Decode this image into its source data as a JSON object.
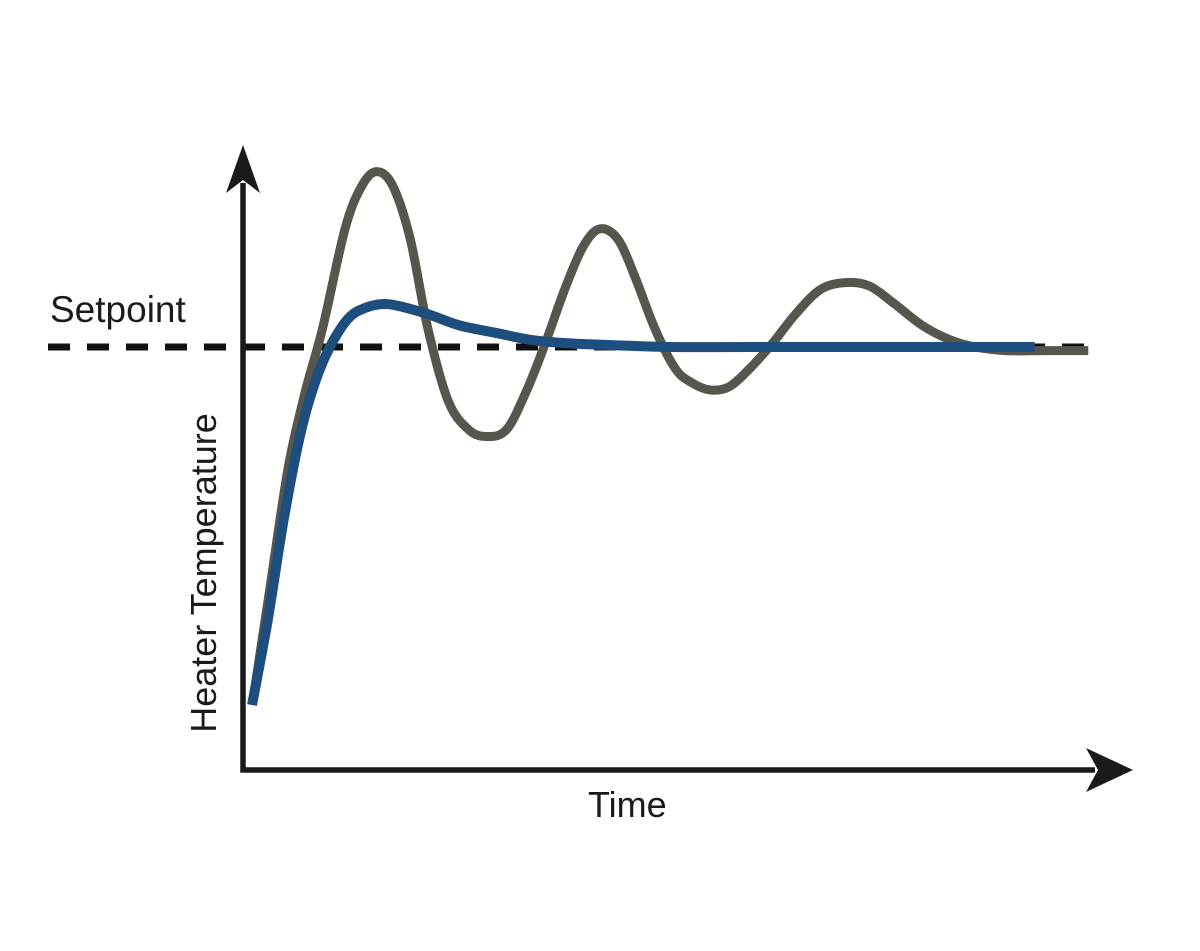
{
  "figure": {
    "background": "#ffffff",
    "labels": {
      "setpoint": "Setpoint",
      "y_axis": "Heater Temperature",
      "x_axis": "Time"
    },
    "colors": {
      "axis": "#1a1a1a",
      "setpoint_line": "#111111",
      "label_text": "#1a1a1a",
      "oscillating_curve": "#57564d",
      "tuned_curve": "#1e4e7d"
    }
  },
  "chart_data": {
    "type": "line",
    "title": "",
    "xlabel": "Time",
    "ylabel": "Heater Temperature",
    "annotations": [
      "Setpoint"
    ],
    "axis_style": "conceptual arrows, no tick marks, no numeric scale",
    "setpoint_value": 1.0,
    "setpoint_line_style": "black dashed horizontal line",
    "x_range": [
      0,
      10
    ],
    "y_range": [
      0,
      1.6
    ],
    "grid": false,
    "legend": false,
    "series": [
      {
        "name": "oscillating-response",
        "description": "underdamped oscillating heater response (gray)",
        "color": "#57564d",
        "points": [
          [
            0.01,
            0.01
          ],
          [
            0.21,
            0.32
          ],
          [
            0.43,
            0.66
          ],
          [
            0.63,
            0.87
          ],
          [
            0.84,
            1.05
          ],
          [
            1.11,
            1.33
          ],
          [
            1.31,
            1.45
          ],
          [
            1.49,
            1.49
          ],
          [
            1.68,
            1.45
          ],
          [
            1.89,
            1.3
          ],
          [
            2.1,
            1.05
          ],
          [
            2.34,
            0.85
          ],
          [
            2.58,
            0.77
          ],
          [
            2.8,
            0.75
          ],
          [
            3.04,
            0.77
          ],
          [
            3.28,
            0.88
          ],
          [
            3.5,
            1.01
          ],
          [
            3.73,
            1.16
          ],
          [
            3.95,
            1.28
          ],
          [
            4.15,
            1.33
          ],
          [
            4.37,
            1.3
          ],
          [
            4.58,
            1.19
          ],
          [
            4.81,
            1.05
          ],
          [
            5.05,
            0.94
          ],
          [
            5.25,
            0.9
          ],
          [
            5.47,
            0.88
          ],
          [
            5.7,
            0.89
          ],
          [
            5.94,
            0.94
          ],
          [
            6.21,
            1.01
          ],
          [
            6.48,
            1.09
          ],
          [
            6.78,
            1.16
          ],
          [
            7.08,
            1.18
          ],
          [
            7.37,
            1.17
          ],
          [
            7.67,
            1.12
          ],
          [
            8.0,
            1.06
          ],
          [
            8.33,
            1.02
          ],
          [
            8.63,
            1.0
          ],
          [
            8.99,
            0.99
          ],
          [
            9.46,
            0.99
          ],
          [
            9.98,
            0.99
          ]
        ]
      },
      {
        "name": "tuned-response",
        "description": "well-tuned heater response settling at setpoint (blue)",
        "color": "#1e4e7d",
        "points": [
          [
            0.0,
            0.0
          ],
          [
            0.19,
            0.24
          ],
          [
            0.38,
            0.52
          ],
          [
            0.57,
            0.75
          ],
          [
            0.75,
            0.9
          ],
          [
            0.93,
            1.0
          ],
          [
            1.15,
            1.08
          ],
          [
            1.36,
            1.11
          ],
          [
            1.59,
            1.12
          ],
          [
            1.83,
            1.11
          ],
          [
            2.12,
            1.09
          ],
          [
            2.48,
            1.06
          ],
          [
            2.9,
            1.04
          ],
          [
            3.32,
            1.02
          ],
          [
            3.79,
            1.01
          ],
          [
            4.33,
            1.005
          ],
          [
            4.99,
            1.0
          ],
          [
            5.94,
            1.0
          ],
          [
            7.14,
            1.0
          ],
          [
            8.33,
            1.0
          ],
          [
            9.34,
            1.0
          ]
        ]
      }
    ]
  }
}
